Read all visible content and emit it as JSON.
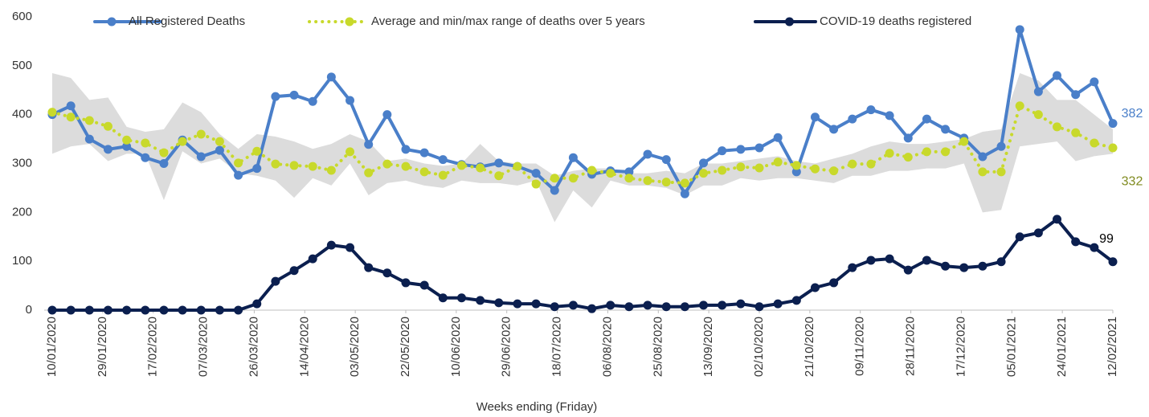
{
  "chart_data": {
    "type": "line",
    "xlabel": "Weeks ending (Friday)",
    "legend": "top",
    "x": [
      "2020-01-10",
      "2020-01-17",
      "2020-01-24",
      "2020-01-31",
      "2020-02-07",
      "2020-02-14",
      "2020-02-21",
      "2020-02-28",
      "2020-03-06",
      "2020-03-13",
      "2020-03-20",
      "2020-03-27",
      "2020-04-03",
      "2020-04-10",
      "2020-04-17",
      "2020-04-24",
      "2020-05-01",
      "2020-05-08",
      "2020-05-15",
      "2020-05-22",
      "2020-05-29",
      "2020-06-05",
      "2020-06-12",
      "2020-06-19",
      "2020-06-26",
      "2020-07-03",
      "2020-07-10",
      "2020-07-17",
      "2020-07-24",
      "2020-07-31",
      "2020-08-07",
      "2020-08-14",
      "2020-08-21",
      "2020-08-28",
      "2020-09-04",
      "2020-09-11",
      "2020-09-18",
      "2020-09-25",
      "2020-10-02",
      "2020-10-09",
      "2020-10-16",
      "2020-10-23",
      "2020-10-30",
      "2020-11-06",
      "2020-11-13",
      "2020-11-20",
      "2020-11-27",
      "2020-12-04",
      "2020-12-11",
      "2020-12-18",
      "2020-12-25",
      "2021-01-01",
      "2021-01-08",
      "2021-01-15",
      "2021-01-22",
      "2021-01-29",
      "2021-02-05",
      "2021-02-12"
    ],
    "xlim": [
      "2020-01-10",
      "2021-02-12"
    ],
    "xticks": [
      {
        "value": "2020-01-10",
        "label": "10/01/2020"
      },
      {
        "value": "2020-01-29",
        "label": "29/01/2020"
      },
      {
        "value": "2020-02-17",
        "label": "17/02/2020"
      },
      {
        "value": "2020-03-07",
        "label": "07/03/2020"
      },
      {
        "value": "2020-03-26",
        "label": "26/03/2020"
      },
      {
        "value": "2020-04-14",
        "label": "14/04/2020"
      },
      {
        "value": "2020-05-03",
        "label": "03/05/2020"
      },
      {
        "value": "2020-05-22",
        "label": "22/05/2020"
      },
      {
        "value": "2020-06-10",
        "label": "10/06/2020"
      },
      {
        "value": "2020-06-29",
        "label": "29/06/2020"
      },
      {
        "value": "2020-07-18",
        "label": "18/07/2020"
      },
      {
        "value": "2020-08-06",
        "label": "06/08/2020"
      },
      {
        "value": "2020-08-25",
        "label": "25/08/2020"
      },
      {
        "value": "2020-09-13",
        "label": "13/09/2020"
      },
      {
        "value": "2020-10-02",
        "label": "02/10/2020"
      },
      {
        "value": "2020-10-21",
        "label": "21/10/2020"
      },
      {
        "value": "2020-11-09",
        "label": "09/11/2020"
      },
      {
        "value": "2020-11-28",
        "label": "28/11/2020"
      },
      {
        "value": "2020-12-17",
        "label": "17/12/2020"
      },
      {
        "value": "2021-01-05",
        "label": "05/01/2021"
      },
      {
        "value": "2021-01-24",
        "label": "24/01/2021"
      },
      {
        "value": "2021-02-12",
        "label": "12/02/2021"
      }
    ],
    "ylim": [
      0,
      600
    ],
    "yticks": [
      0,
      100,
      200,
      300,
      400,
      500,
      600
    ],
    "series": [
      {
        "name": "All Registered Deaths",
        "color": "#4a7fc9",
        "style": "solid",
        "values": [
          400,
          418,
          350,
          329,
          335,
          312,
          300,
          348,
          314,
          327,
          276,
          290,
          437,
          440,
          427,
          477,
          429,
          339,
          400,
          329,
          322,
          308,
          298,
          293,
          301,
          294,
          280,
          245,
          312,
          278,
          285,
          283,
          319,
          308,
          238,
          301,
          326,
          329,
          332,
          353,
          283,
          395,
          370,
          391,
          410,
          398,
          352,
          391,
          370,
          352,
          314,
          335,
          574,
          447,
          480,
          441,
          467,
          382
        ],
        "end_label": true
      },
      {
        "name": "Average and min/max range of deaths over 5 years",
        "color": "#c8d92b",
        "style": "dotted",
        "values": [
          405,
          395,
          388,
          376,
          348,
          342,
          322,
          345,
          360,
          345,
          301,
          325,
          299,
          296,
          294,
          286,
          324,
          281,
          299,
          294,
          283,
          276,
          296,
          291,
          275,
          294,
          258,
          270,
          270,
          286,
          280,
          270,
          265,
          262,
          260,
          280,
          286,
          293,
          291,
          303,
          296,
          289,
          285,
          299,
          299,
          321,
          313,
          324,
          324,
          345,
          283,
          283,
          418,
          400,
          375,
          363,
          342,
          332
        ],
        "range_color": "#dcdcdc",
        "min": [
          320,
          335,
          340,
          305,
          320,
          320,
          225,
          325,
          300,
          310,
          280,
          275,
          265,
          230,
          270,
          255,
          300,
          235,
          260,
          265,
          255,
          250,
          265,
          260,
          260,
          255,
          265,
          180,
          245,
          210,
          265,
          255,
          255,
          250,
          235,
          255,
          255,
          270,
          265,
          270,
          270,
          265,
          260,
          275,
          275,
          285,
          285,
          290,
          290,
          300,
          200,
          205,
          335,
          340,
          345,
          305,
          315,
          320
        ],
        "max": [
          485,
          475,
          430,
          435,
          375,
          365,
          370,
          425,
          405,
          360,
          330,
          360,
          355,
          345,
          330,
          340,
          360,
          345,
          305,
          310,
          300,
          295,
          300,
          340,
          305,
          300,
          300,
          275,
          285,
          290,
          290,
          280,
          280,
          285,
          280,
          300,
          300,
          305,
          310,
          315,
          305,
          300,
          310,
          320,
          335,
          345,
          340,
          340,
          345,
          350,
          365,
          370,
          485,
          470,
          430,
          430,
          400,
          370
        ],
        "end_label": true,
        "label_color": "#7f8a1e"
      },
      {
        "name": "COVID-19 deaths registered",
        "color": "#0b1f4f",
        "style": "solid",
        "values": [
          0,
          0,
          0,
          0,
          0,
          0,
          0,
          0,
          0,
          0,
          0,
          13,
          59,
          81,
          105,
          133,
          128,
          87,
          76,
          56,
          51,
          25,
          25,
          20,
          15,
          13,
          13,
          7,
          10,
          3,
          10,
          7,
          10,
          7,
          7,
          10,
          10,
          13,
          7,
          13,
          20,
          46,
          56,
          87,
          102,
          105,
          82,
          102,
          90,
          87,
          90,
          99,
          150,
          158,
          186,
          140,
          128,
          99
        ],
        "end_label": true,
        "label_color": "#000000"
      }
    ]
  }
}
